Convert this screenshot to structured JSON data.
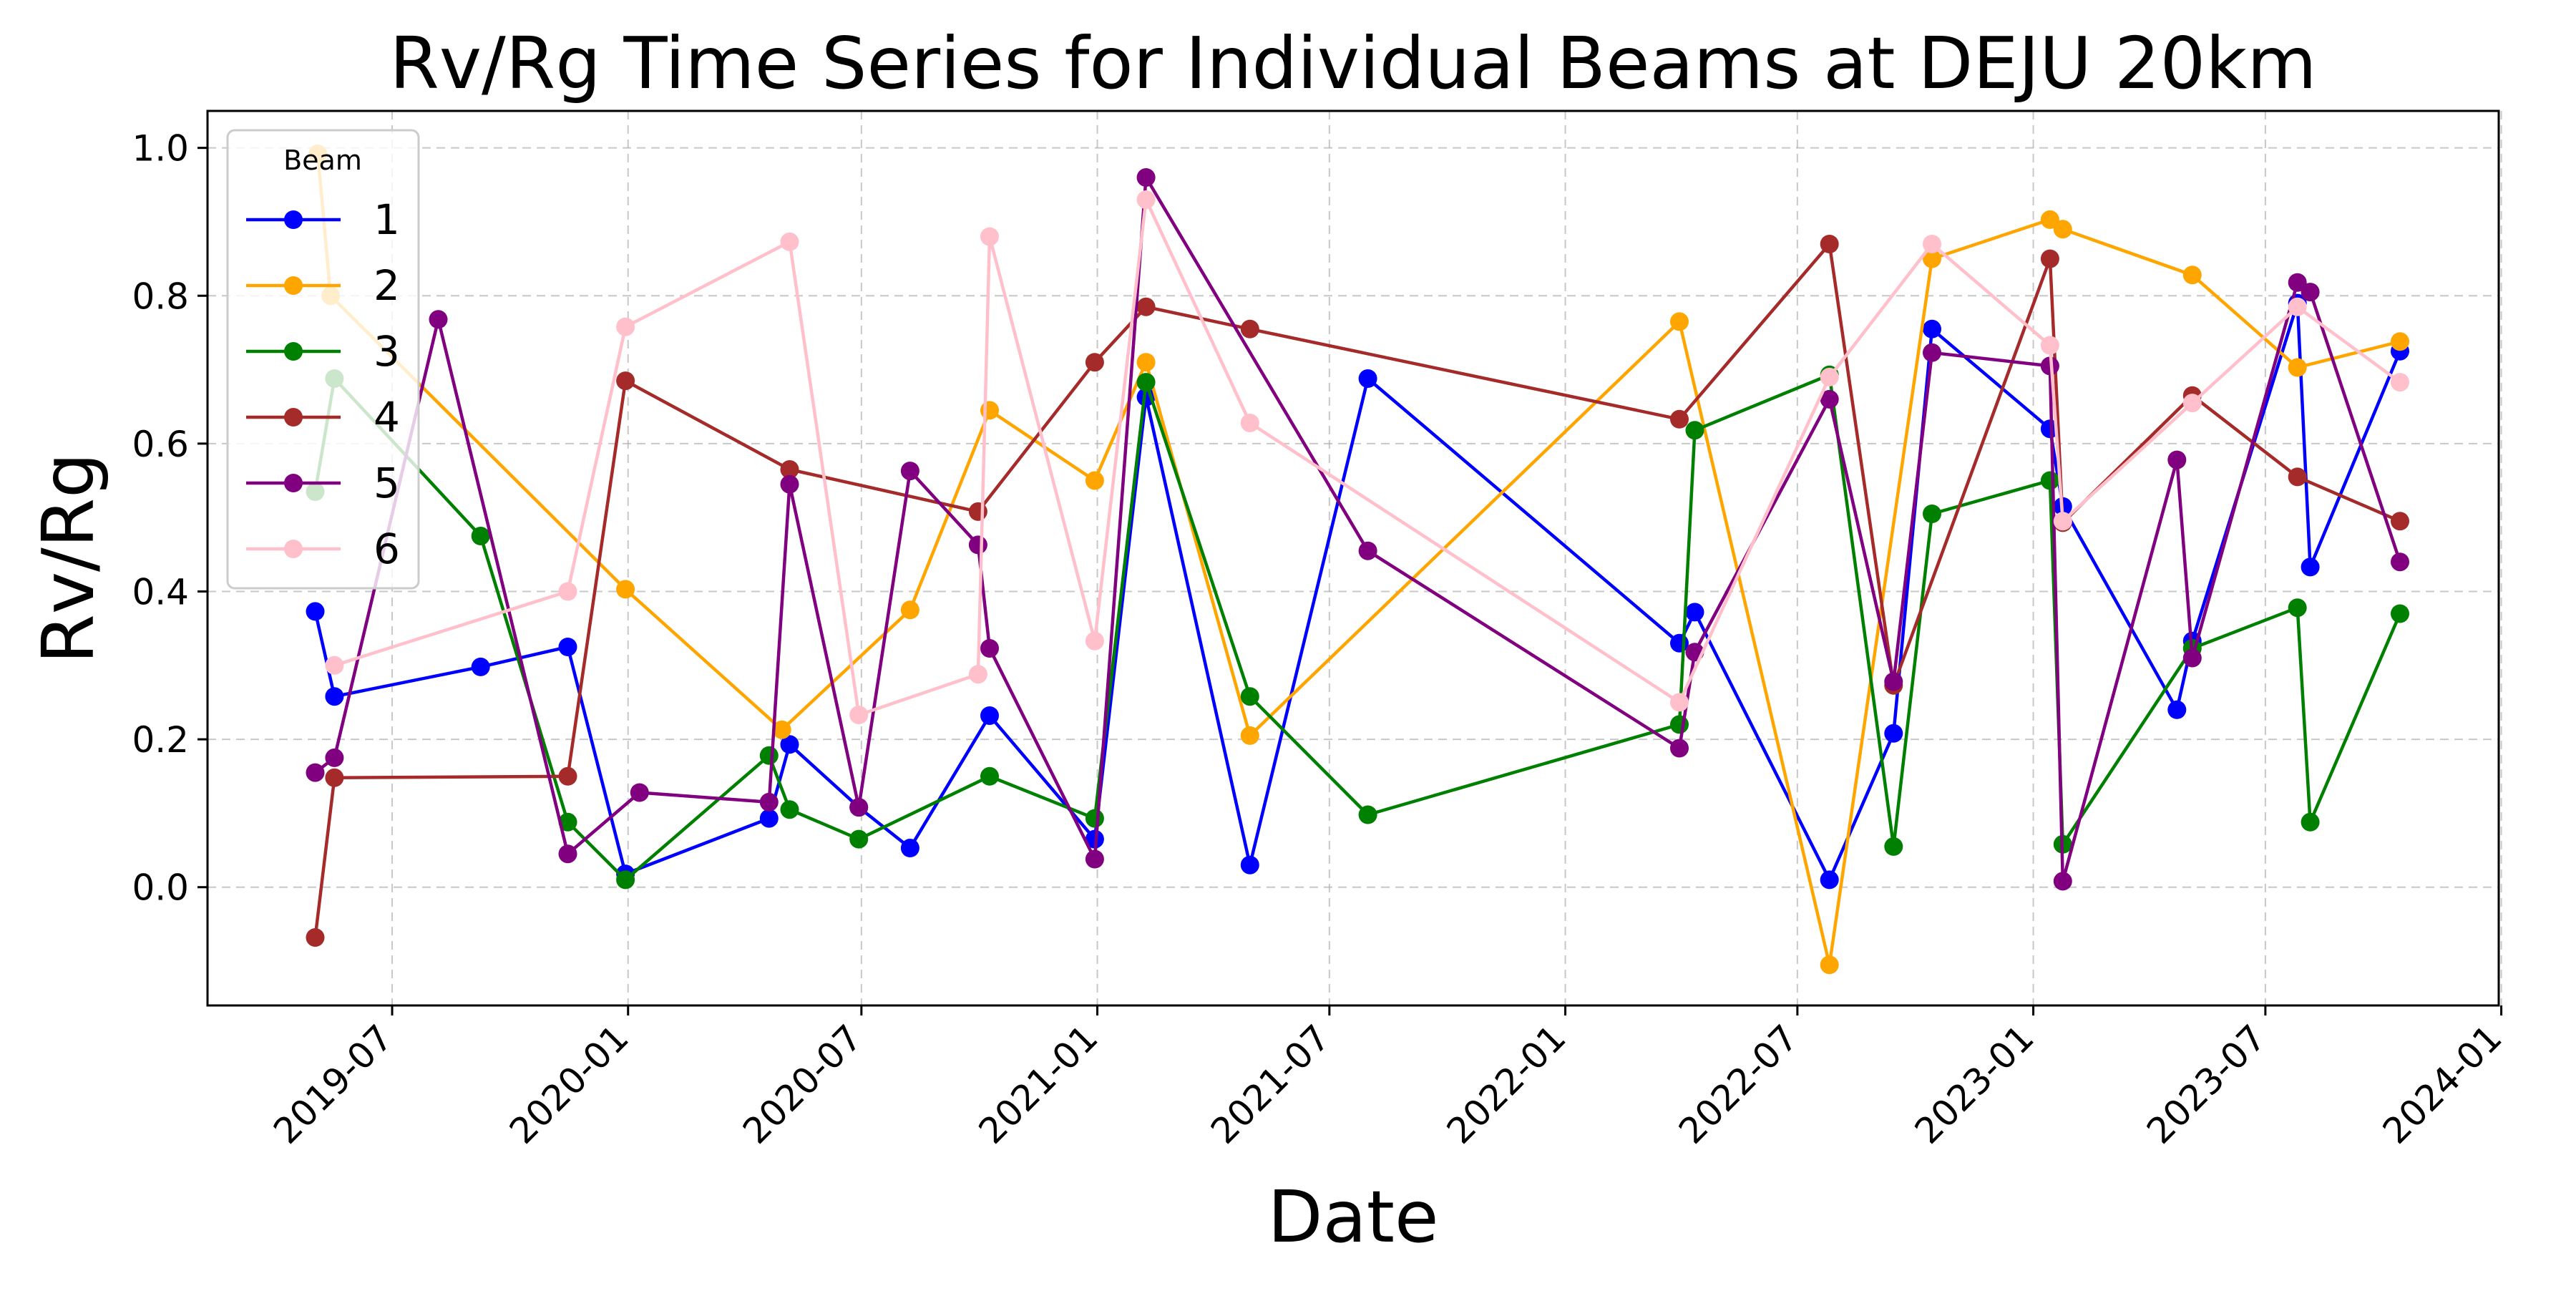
{
  "chart_data": {
    "type": "line",
    "title": "Rv/Rg Time Series for Individual Beams at DEJU 20km",
    "xlabel": "Date",
    "ylabel": "Rv/Rg",
    "x_scale": "date",
    "xlim": [
      "2019-02-07",
      "2023-12-30"
    ],
    "ylim": [
      -0.16,
      1.05
    ],
    "x_ticks": [
      "2019-07-01",
      "2020-01-01",
      "2020-07-01",
      "2021-01-01",
      "2021-07-01",
      "2022-01-01",
      "2022-07-01",
      "2023-01-01",
      "2023-07-01",
      "2024-01-01"
    ],
    "x_tick_labels": [
      "2019-07",
      "2020-01",
      "2020-07",
      "2021-01",
      "2021-07",
      "2022-01",
      "2022-07",
      "2023-01",
      "2023-07",
      "2024-01"
    ],
    "y_ticks": [
      0.0,
      0.2,
      0.4,
      0.6,
      0.8,
      1.0
    ],
    "y_tick_labels": [
      "0.0",
      "0.2",
      "0.4",
      "0.6",
      "0.8",
      "1.0"
    ],
    "grid": true,
    "legend": {
      "title": "Beam",
      "placement": "top-left"
    },
    "series": [
      {
        "name": "1",
        "color": "#0000ff",
        "points": [
          [
            "2019-05-02",
            0.373
          ],
          [
            "2019-05-17",
            0.258
          ],
          [
            "2019-09-08",
            0.298
          ],
          [
            "2019-11-15",
            0.325
          ],
          [
            "2019-12-30",
            0.018
          ],
          [
            "2020-04-20",
            0.093
          ],
          [
            "2020-05-06",
            0.193
          ],
          [
            "2020-06-29",
            0.108
          ],
          [
            "2020-08-08",
            0.053
          ],
          [
            "2020-10-09",
            0.232
          ],
          [
            "2020-12-30",
            0.065
          ],
          [
            "2021-02-08",
            0.663
          ],
          [
            "2021-04-30",
            0.03
          ],
          [
            "2021-07-31",
            0.688
          ],
          [
            "2022-03-31",
            0.33
          ],
          [
            "2022-04-12",
            0.372
          ],
          [
            "2022-07-26",
            0.01
          ],
          [
            "2022-09-14",
            0.208
          ],
          [
            "2022-10-14",
            0.755
          ],
          [
            "2023-01-14",
            0.62
          ],
          [
            "2023-01-24",
            0.515
          ],
          [
            "2023-04-23",
            0.24
          ],
          [
            "2023-05-05",
            0.333
          ],
          [
            "2023-07-26",
            0.79
          ],
          [
            "2023-08-05",
            0.433
          ],
          [
            "2023-10-14",
            0.725
          ]
        ]
      },
      {
        "name": "2",
        "color": "#ffa500",
        "points": [
          [
            "2019-05-04",
            0.992
          ],
          [
            "2019-05-14",
            0.8
          ],
          [
            "2019-12-30",
            0.403
          ],
          [
            "2020-04-30",
            0.213
          ],
          [
            "2020-08-08",
            0.375
          ],
          [
            "2020-10-09",
            0.645
          ],
          [
            "2020-12-30",
            0.55
          ],
          [
            "2021-02-08",
            0.71
          ],
          [
            "2021-04-30",
            0.205
          ],
          [
            "2022-03-31",
            0.765
          ],
          [
            "2022-07-26",
            -0.105
          ],
          [
            "2022-10-14",
            0.85
          ],
          [
            "2023-01-14",
            0.903
          ],
          [
            "2023-01-24",
            0.89
          ],
          [
            "2023-05-05",
            0.828
          ],
          [
            "2023-07-26",
            0.703
          ],
          [
            "2023-10-14",
            0.738
          ]
        ]
      },
      {
        "name": "3",
        "color": "#008000",
        "points": [
          [
            "2019-05-02",
            0.535
          ],
          [
            "2019-05-17",
            0.688
          ],
          [
            "2019-09-08",
            0.475
          ],
          [
            "2019-11-15",
            0.088
          ],
          [
            "2019-12-30",
            0.01
          ],
          [
            "2020-04-20",
            0.178
          ],
          [
            "2020-05-06",
            0.105
          ],
          [
            "2020-06-29",
            0.065
          ],
          [
            "2020-10-09",
            0.15
          ],
          [
            "2020-12-30",
            0.093
          ],
          [
            "2021-02-08",
            0.683
          ],
          [
            "2021-04-30",
            0.258
          ],
          [
            "2021-07-31",
            0.098
          ],
          [
            "2022-03-31",
            0.22
          ],
          [
            "2022-04-12",
            0.618
          ],
          [
            "2022-07-26",
            0.693
          ],
          [
            "2022-09-14",
            0.055
          ],
          [
            "2022-10-14",
            0.505
          ],
          [
            "2023-01-14",
            0.55
          ],
          [
            "2023-01-24",
            0.058
          ],
          [
            "2023-05-05",
            0.323
          ],
          [
            "2023-07-26",
            0.378
          ],
          [
            "2023-08-05",
            0.088
          ],
          [
            "2023-10-14",
            0.37
          ]
        ]
      },
      {
        "name": "4",
        "color": "#a52a2a",
        "points": [
          [
            "2019-05-02",
            -0.068
          ],
          [
            "2019-05-17",
            0.148
          ],
          [
            "2019-11-15",
            0.15
          ],
          [
            "2019-12-30",
            0.685
          ],
          [
            "2020-05-06",
            0.565
          ],
          [
            "2020-09-30",
            0.508
          ],
          [
            "2020-12-30",
            0.71
          ],
          [
            "2021-02-08",
            0.785
          ],
          [
            "2021-04-30",
            0.755
          ],
          [
            "2022-03-31",
            0.633
          ],
          [
            "2022-07-26",
            0.87
          ],
          [
            "2022-09-14",
            0.273
          ],
          [
            "2023-01-14",
            0.85
          ],
          [
            "2023-01-24",
            0.493
          ],
          [
            "2023-05-05",
            0.665
          ],
          [
            "2023-07-26",
            0.555
          ],
          [
            "2023-10-14",
            0.495
          ]
        ]
      },
      {
        "name": "5",
        "color": "#800080",
        "points": [
          [
            "2019-05-02",
            0.155
          ],
          [
            "2019-05-17",
            0.175
          ],
          [
            "2019-08-06",
            0.768
          ],
          [
            "2019-11-15",
            0.045
          ],
          [
            "2020-01-10",
            0.128
          ],
          [
            "2020-04-20",
            0.115
          ],
          [
            "2020-05-06",
            0.545
          ],
          [
            "2020-06-29",
            0.108
          ],
          [
            "2020-08-08",
            0.563
          ],
          [
            "2020-09-30",
            0.463
          ],
          [
            "2020-10-09",
            0.323
          ],
          [
            "2020-12-30",
            0.038
          ],
          [
            "2021-02-08",
            0.96
          ],
          [
            "2021-07-31",
            0.455
          ],
          [
            "2022-03-31",
            0.188
          ],
          [
            "2022-04-12",
            0.318
          ],
          [
            "2022-07-26",
            0.66
          ],
          [
            "2022-09-14",
            0.278
          ],
          [
            "2022-10-14",
            0.723
          ],
          [
            "2023-01-14",
            0.705
          ],
          [
            "2023-01-24",
            0.008
          ],
          [
            "2023-04-23",
            0.578
          ],
          [
            "2023-05-05",
            0.31
          ],
          [
            "2023-07-26",
            0.818
          ],
          [
            "2023-08-05",
            0.805
          ],
          [
            "2023-10-14",
            0.44
          ]
        ]
      },
      {
        "name": "6",
        "color": "#ffc0cb",
        "points": [
          [
            "2019-05-17",
            0.3
          ],
          [
            "2019-11-15",
            0.4
          ],
          [
            "2019-12-30",
            0.758
          ],
          [
            "2020-05-06",
            0.873
          ],
          [
            "2020-06-29",
            0.233
          ],
          [
            "2020-09-30",
            0.288
          ],
          [
            "2020-10-09",
            0.88
          ],
          [
            "2020-12-30",
            0.333
          ],
          [
            "2021-02-08",
            0.93
          ],
          [
            "2021-04-30",
            0.628
          ],
          [
            "2022-03-31",
            0.25
          ],
          [
            "2022-07-26",
            0.69
          ],
          [
            "2022-10-14",
            0.87
          ],
          [
            "2023-01-14",
            0.733
          ],
          [
            "2023-01-24",
            0.495
          ],
          [
            "2023-05-05",
            0.655
          ],
          [
            "2023-07-26",
            0.785
          ],
          [
            "2023-10-14",
            0.683
          ]
        ]
      }
    ]
  }
}
